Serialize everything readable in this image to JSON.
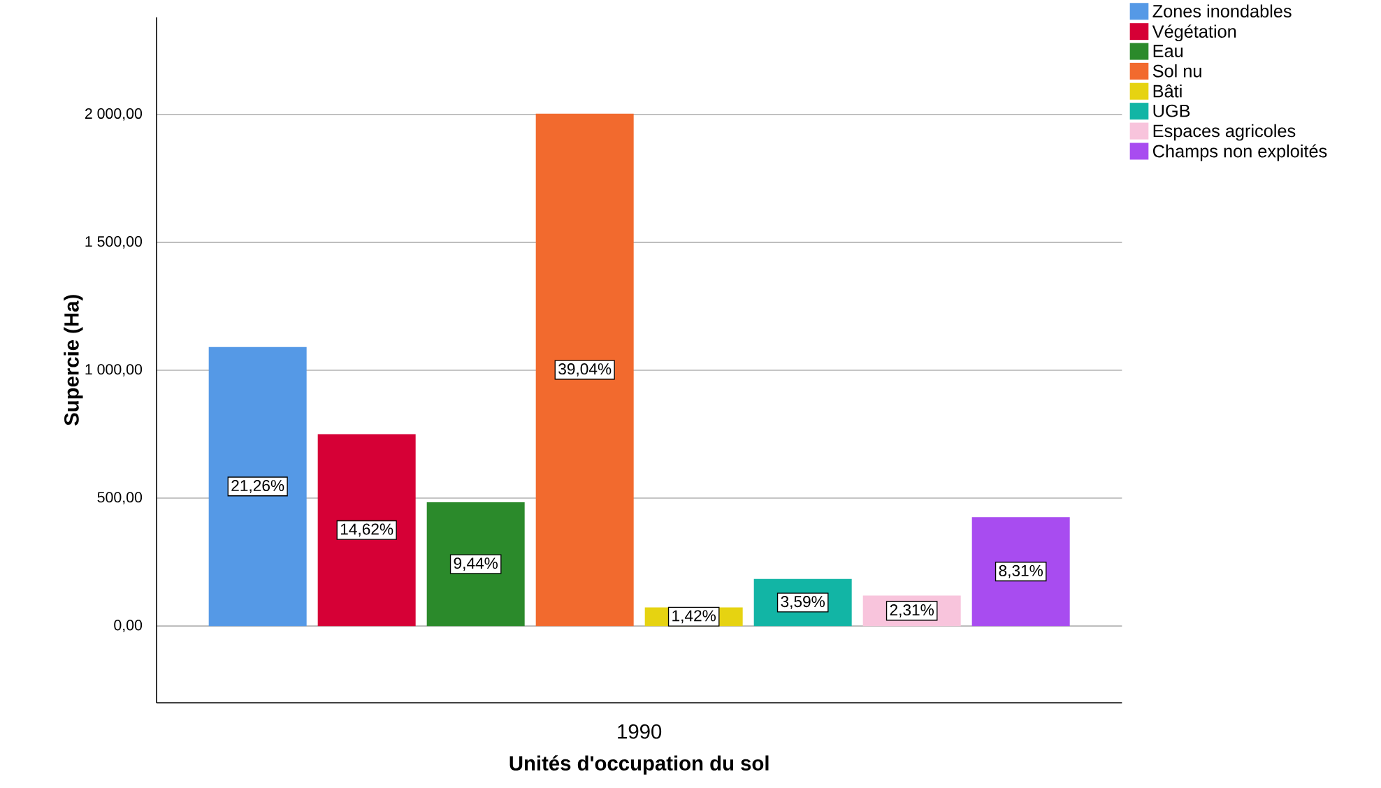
{
  "chart_data": {
    "type": "bar",
    "categories": [
      "1990"
    ],
    "xlabel": "Unités d'occupation du sol",
    "ylabel": "Supercie (Ha)",
    "ylim": [
      -300,
      2380
    ],
    "yticks": [
      {
        "value": 0,
        "label": "0,00"
      },
      {
        "value": 500,
        "label": "500,00"
      },
      {
        "value": 1000,
        "label": "1 000,00"
      },
      {
        "value": 1500,
        "label": "1 500,00"
      },
      {
        "value": 2000,
        "label": "2 000,00"
      }
    ],
    "grid": "y",
    "legend": "top right",
    "series": [
      {
        "name": "Zones inondables",
        "color": "#5599e6",
        "values": [
          1091
        ]
      },
      {
        "name": "Végétation",
        "color": "#d60036",
        "values": [
          750
        ]
      },
      {
        "name": "Eau",
        "color": "#2b8a2b",
        "values": [
          484
        ]
      },
      {
        "name": "Sol nu",
        "color": "#f26a2e",
        "values": [
          2003
        ]
      },
      {
        "name": "Bâti",
        "color": "#e6d311",
        "values": [
          73
        ]
      },
      {
        "name": "UGB",
        "color": "#12b5a5",
        "values": [
          184
        ]
      },
      {
        "name": "Espaces agricoles",
        "color": "#f8c4dc",
        "values": [
          119
        ]
      },
      {
        "name": "Champs non exploités",
        "color": "#a84cf0",
        "values": [
          426
        ]
      }
    ],
    "annotations": [
      "21,26%",
      "14,62%",
      "9,44%",
      "39,04%",
      "1,42%",
      "3,59%",
      "2,31%",
      "8,31%"
    ]
  }
}
